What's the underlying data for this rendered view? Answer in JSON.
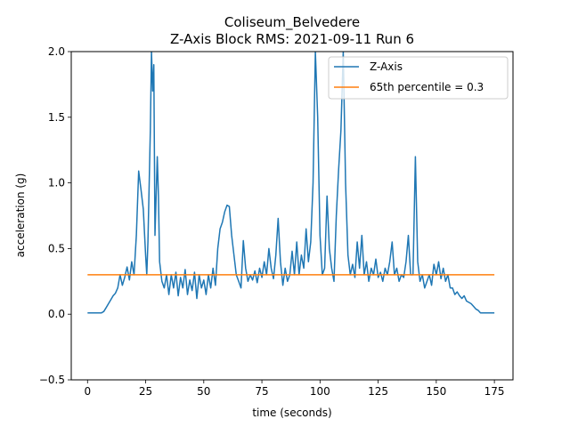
{
  "chart_data": {
    "type": "line",
    "title": "Coliseum_Belvedere",
    "subtitle": "Z-Axis Block RMS: 2021-09-11 Run 6",
    "xlabel": "time (seconds)",
    "ylabel": "acceleration (g)",
    "xlim": [
      -7,
      183
    ],
    "ylim": [
      -0.5,
      2.0
    ],
    "x_ticks": [
      0,
      25,
      50,
      75,
      100,
      125,
      150,
      175
    ],
    "y_ticks": [
      -0.5,
      0.0,
      0.5,
      1.0,
      1.5,
      2.0
    ],
    "x_tick_labels": [
      "0",
      "25",
      "50",
      "75",
      "100",
      "125",
      "150",
      "175"
    ],
    "y_tick_labels": [
      "−0.5",
      "0.0",
      "0.5",
      "1.0",
      "1.5",
      "2.0"
    ],
    "legend_position": "top-right",
    "grid": false,
    "series": [
      {
        "name": "Z-Axis",
        "color": "#1f77b4",
        "points": [
          [
            0,
            0.01
          ],
          [
            2,
            0.01
          ],
          [
            4,
            0.01
          ],
          [
            6,
            0.01
          ],
          [
            7,
            0.02
          ],
          [
            8,
            0.05
          ],
          [
            9,
            0.08
          ],
          [
            10,
            0.11
          ],
          [
            11,
            0.14
          ],
          [
            12,
            0.16
          ],
          [
            13,
            0.2
          ],
          [
            14,
            0.3
          ],
          [
            15,
            0.22
          ],
          [
            16,
            0.28
          ],
          [
            17,
            0.36
          ],
          [
            18,
            0.26
          ],
          [
            19,
            0.4
          ],
          [
            20,
            0.3
          ],
          [
            21,
            0.6
          ],
          [
            22,
            1.09
          ],
          [
            23,
            0.95
          ],
          [
            24,
            0.8
          ],
          [
            25,
            0.45
          ],
          [
            25.5,
            0.3
          ],
          [
            26,
            0.55
          ],
          [
            27,
            1.4
          ],
          [
            27.5,
            2.0
          ],
          [
            28,
            1.7
          ],
          [
            28.5,
            1.9
          ],
          [
            29,
            0.6
          ],
          [
            30,
            1.2
          ],
          [
            30.5,
            0.9
          ],
          [
            31,
            0.4
          ],
          [
            32,
            0.25
          ],
          [
            33,
            0.2
          ],
          [
            34,
            0.3
          ],
          [
            35,
            0.15
          ],
          [
            36,
            0.3
          ],
          [
            37,
            0.2
          ],
          [
            38,
            0.32
          ],
          [
            39,
            0.14
          ],
          [
            40,
            0.28
          ],
          [
            41,
            0.2
          ],
          [
            42,
            0.34
          ],
          [
            43,
            0.15
          ],
          [
            44,
            0.26
          ],
          [
            45,
            0.18
          ],
          [
            46,
            0.32
          ],
          [
            47,
            0.12
          ],
          [
            48,
            0.3
          ],
          [
            49,
            0.2
          ],
          [
            50,
            0.26
          ],
          [
            51,
            0.15
          ],
          [
            52,
            0.3
          ],
          [
            53,
            0.2
          ],
          [
            54,
            0.35
          ],
          [
            55,
            0.22
          ],
          [
            56,
            0.5
          ],
          [
            57,
            0.65
          ],
          [
            58,
            0.7
          ],
          [
            59,
            0.78
          ],
          [
            60,
            0.83
          ],
          [
            61,
            0.82
          ],
          [
            62,
            0.6
          ],
          [
            63,
            0.45
          ],
          [
            64,
            0.3
          ],
          [
            65,
            0.25
          ],
          [
            66,
            0.2
          ],
          [
            67,
            0.56
          ],
          [
            68,
            0.35
          ],
          [
            69,
            0.25
          ],
          [
            70,
            0.3
          ],
          [
            71,
            0.26
          ],
          [
            72,
            0.33
          ],
          [
            73,
            0.24
          ],
          [
            74,
            0.35
          ],
          [
            75,
            0.28
          ],
          [
            76,
            0.4
          ],
          [
            77,
            0.3
          ],
          [
            78,
            0.5
          ],
          [
            79,
            0.35
          ],
          [
            80,
            0.27
          ],
          [
            81,
            0.45
          ],
          [
            82,
            0.73
          ],
          [
            83,
            0.4
          ],
          [
            84,
            0.22
          ],
          [
            85,
            0.35
          ],
          [
            86,
            0.25
          ],
          [
            87,
            0.3
          ],
          [
            88,
            0.48
          ],
          [
            89,
            0.3
          ],
          [
            90,
            0.55
          ],
          [
            91,
            0.3
          ],
          [
            92,
            0.45
          ],
          [
            93,
            0.35
          ],
          [
            94,
            0.65
          ],
          [
            95,
            0.4
          ],
          [
            96,
            0.55
          ],
          [
            97,
            1.0
          ],
          [
            98,
            2.0
          ],
          [
            99,
            1.5
          ],
          [
            100,
            0.6
          ],
          [
            101,
            0.3
          ],
          [
            102,
            0.35
          ],
          [
            103,
            0.9
          ],
          [
            104,
            0.5
          ],
          [
            105,
            0.35
          ],
          [
            106,
            0.25
          ],
          [
            107,
            0.75
          ],
          [
            108,
            1.1
          ],
          [
            109,
            1.4
          ],
          [
            110,
            2.0
          ],
          [
            111,
            1.0
          ],
          [
            112,
            0.45
          ],
          [
            113,
            0.3
          ],
          [
            114,
            0.38
          ],
          [
            115,
            0.28
          ],
          [
            116,
            0.55
          ],
          [
            117,
            0.35
          ],
          [
            118,
            0.6
          ],
          [
            119,
            0.3
          ],
          [
            120,
            0.4
          ],
          [
            121,
            0.25
          ],
          [
            122,
            0.35
          ],
          [
            123,
            0.3
          ],
          [
            124,
            0.42
          ],
          [
            125,
            0.28
          ],
          [
            126,
            0.32
          ],
          [
            127,
            0.25
          ],
          [
            128,
            0.35
          ],
          [
            129,
            0.3
          ],
          [
            130,
            0.4
          ],
          [
            131,
            0.55
          ],
          [
            132,
            0.3
          ],
          [
            133,
            0.35
          ],
          [
            134,
            0.25
          ],
          [
            135,
            0.3
          ],
          [
            136,
            0.28
          ],
          [
            137,
            0.4
          ],
          [
            138,
            0.6
          ],
          [
            139,
            0.3
          ],
          [
            140,
            0.3
          ],
          [
            141,
            1.2
          ],
          [
            142,
            0.4
          ],
          [
            143,
            0.25
          ],
          [
            144,
            0.3
          ],
          [
            145,
            0.2
          ],
          [
            146,
            0.25
          ],
          [
            147,
            0.3
          ],
          [
            148,
            0.22
          ],
          [
            149,
            0.38
          ],
          [
            150,
            0.3
          ],
          [
            151,
            0.4
          ],
          [
            152,
            0.27
          ],
          [
            153,
            0.35
          ],
          [
            154,
            0.25
          ],
          [
            155,
            0.3
          ],
          [
            156,
            0.2
          ],
          [
            157,
            0.2
          ],
          [
            158,
            0.15
          ],
          [
            159,
            0.17
          ],
          [
            160,
            0.14
          ],
          [
            161,
            0.12
          ],
          [
            162,
            0.14
          ],
          [
            163,
            0.1
          ],
          [
            164,
            0.09
          ],
          [
            165,
            0.08
          ],
          [
            166,
            0.06
          ],
          [
            167,
            0.04
          ],
          [
            168,
            0.03
          ],
          [
            169,
            0.01
          ],
          [
            170,
            0.01
          ],
          [
            172,
            0.01
          ],
          [
            175,
            0.01
          ]
        ]
      },
      {
        "name": "65th percentile = 0.3",
        "color": "#ff7f0e",
        "points": [
          [
            0,
            0.3
          ],
          [
            175,
            0.3
          ]
        ]
      }
    ]
  }
}
